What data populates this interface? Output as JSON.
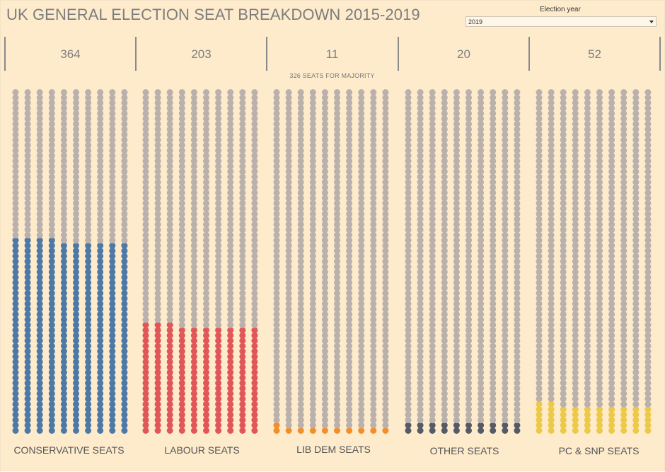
{
  "header": {
    "title": "UK GENERAL ELECTION SEAT  BREAKDOWN 2015-2019"
  },
  "filter": {
    "label": "Election year",
    "selected": "2019"
  },
  "majority_label": "326 SEATS FOR MAJORITY",
  "chart_data": {
    "type": "waffle",
    "title": "UK GENERAL ELECTION SEAT  BREAKDOWN 2015-2019",
    "total_seats": 650,
    "majority": 326,
    "grid": {
      "columns": 10,
      "rows": 65
    },
    "empty_color": "#bab0ac",
    "series": [
      {
        "name": "CONSERVATIVE SEATS",
        "value": 364,
        "color": "#4e79a7"
      },
      {
        "name": "LABOUR SEATS",
        "value": 203,
        "color": "#e15759"
      },
      {
        "name": "LIB DEM SEATS",
        "value": 11,
        "color": "#f28e2b"
      },
      {
        "name": "OTHER SEATS",
        "value": 20,
        "color": "#555b66"
      },
      {
        "name": "PC & SNP SEATS",
        "value": 52,
        "color": "#edc948"
      }
    ]
  }
}
